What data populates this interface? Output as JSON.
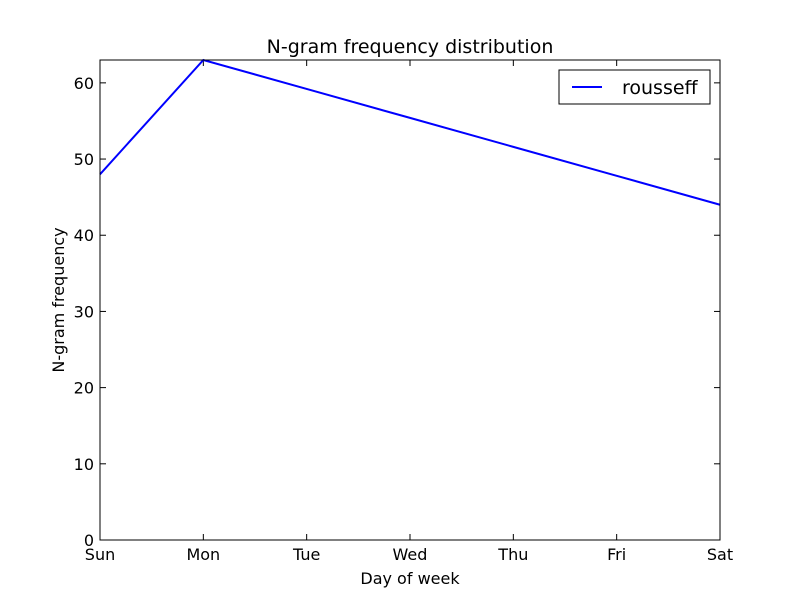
{
  "chart_data": {
    "type": "line",
    "title": "N-gram frequency distribution",
    "xlabel": "Day of week",
    "ylabel": "N-gram frequency",
    "categories": [
      "Sun",
      "Mon",
      "Tue",
      "Wed",
      "Thu",
      "Fri",
      "Sat"
    ],
    "series": [
      {
        "name": "rousseff",
        "color": "#0000ff",
        "values": [
          48,
          63,
          59.2,
          55.4,
          51.6,
          47.8,
          44
        ]
      }
    ],
    "ylim": [
      0,
      63
    ],
    "yticks": [
      0,
      10,
      20,
      30,
      40,
      50,
      60
    ],
    "grid": false,
    "legend_position": "top-right"
  }
}
